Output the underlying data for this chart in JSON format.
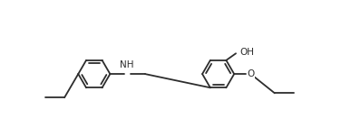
{
  "bg_color": "#ffffff",
  "line_color": "#2d2d2d",
  "text_color": "#2d2d2d",
  "line_width": 1.3,
  "font_size": 7.5,
  "figsize": [
    3.87,
    1.52
  ],
  "dpi": 100,
  "xlim": [
    -1.0,
    9.5
  ],
  "ylim": [
    -1.8,
    3.2
  ]
}
